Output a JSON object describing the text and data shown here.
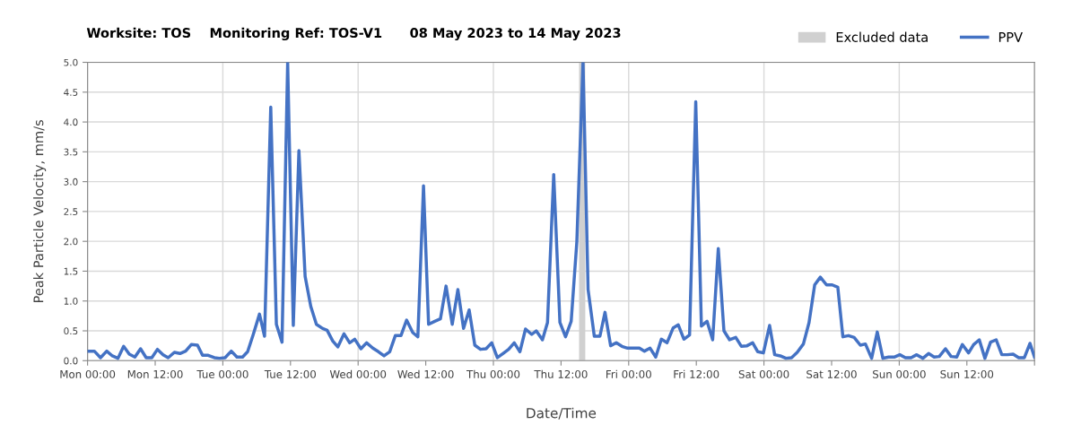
{
  "chart_data": {
    "type": "line",
    "title": "Worksite: TOS    Monitoring Ref: TOS-V1      08 May 2023 to 14 May 2023",
    "xlabel": "Date/Time",
    "ylabel": "Peak Particle Velocity, mm/s",
    "series": [
      {
        "name": "PPV",
        "color": "#4472c4",
        "x": [
          "2023-05-08T00:00",
          "2023-05-08T01:12",
          "2023-05-08T02:18",
          "2023-05-08T03:24",
          "2023-05-08T04:24",
          "2023-05-08T05:24",
          "2023-05-08T06:24",
          "2023-05-08T07:24",
          "2023-05-08T08:24",
          "2023-05-08T09:24",
          "2023-05-08T10:24",
          "2023-05-08T11:24",
          "2023-05-08T12:24",
          "2023-05-08T13:24",
          "2023-05-08T14:18",
          "2023-05-08T15:24",
          "2023-05-08T16:24",
          "2023-05-08T17:24",
          "2023-05-08T18:24",
          "2023-05-08T19:30",
          "2023-05-08T20:24",
          "2023-05-08T21:24",
          "2023-05-08T22:30",
          "2023-05-08T23:24",
          "2023-05-09T00:24",
          "2023-05-09T01:30",
          "2023-05-09T02:30",
          "2023-05-09T03:30",
          "2023-05-09T04:24",
          "2023-05-09T05:24",
          "2023-05-09T06:30",
          "2023-05-09T07:24",
          "2023-05-09T08:30",
          "2023-05-09T09:30",
          "2023-05-09T10:30",
          "2023-05-09T11:30",
          "2023-05-09T12:30",
          "2023-05-09T13:30",
          "2023-05-09T14:36",
          "2023-05-09T15:36",
          "2023-05-09T16:36",
          "2023-05-09T17:42",
          "2023-05-09T18:30",
          "2023-05-09T19:30",
          "2023-05-09T20:24",
          "2023-05-09T21:30",
          "2023-05-09T22:30",
          "2023-05-09T23:24",
          "2023-05-10T00:30",
          "2023-05-10T01:30",
          "2023-05-10T02:36",
          "2023-05-10T03:36",
          "2023-05-10T04:36",
          "2023-05-10T05:36",
          "2023-05-10T06:36",
          "2023-05-10T07:36",
          "2023-05-10T08:36",
          "2023-05-10T09:42",
          "2023-05-10T10:36",
          "2023-05-10T11:36",
          "2023-05-10T12:30",
          "2023-05-10T13:36",
          "2023-05-10T14:36",
          "2023-05-10T15:36",
          "2023-05-10T16:42",
          "2023-05-10T17:42",
          "2023-05-10T18:42",
          "2023-05-10T19:42",
          "2023-05-10T20:42",
          "2023-05-10T21:42",
          "2023-05-10T22:42",
          "2023-05-10T23:42",
          "2023-05-11T00:42",
          "2023-05-11T01:42",
          "2023-05-11T02:42",
          "2023-05-11T03:42",
          "2023-05-11T04:42",
          "2023-05-11T05:42",
          "2023-05-11T06:48",
          "2023-05-11T07:36",
          "2023-05-11T08:42",
          "2023-05-11T09:36",
          "2023-05-11T10:42",
          "2023-05-11T11:48",
          "2023-05-11T12:48",
          "2023-05-11T13:48",
          "2023-05-11T14:48",
          "2023-05-11T15:54",
          "2023-05-11T16:48",
          "2023-05-11T17:54",
          "2023-05-11T18:54",
          "2023-05-11T19:48",
          "2023-05-11T20:48",
          "2023-05-11T21:48",
          "2023-05-11T22:48",
          "2023-05-11T23:48",
          "2023-05-12T00:48",
          "2023-05-12T01:54",
          "2023-05-12T02:48",
          "2023-05-12T03:48",
          "2023-05-12T04:48",
          "2023-05-12T05:48",
          "2023-05-12T06:48",
          "2023-05-12T07:54",
          "2023-05-12T08:48",
          "2023-05-12T09:48",
          "2023-05-12T10:48",
          "2023-05-12T11:54",
          "2023-05-12T12:54",
          "2023-05-12T13:54",
          "2023-05-12T14:54",
          "2023-05-12T15:54",
          "2023-05-12T16:54",
          "2023-05-12T17:54",
          "2023-05-12T19:00",
          "2023-05-12T20:00",
          "2023-05-12T21:00",
          "2023-05-12T22:00",
          "2023-05-12T22:54",
          "2023-05-12T23:54",
          "2023-05-13T01:00",
          "2023-05-13T01:54",
          "2023-05-13T02:54",
          "2023-05-13T03:54",
          "2023-05-13T04:54",
          "2023-05-13T05:54",
          "2023-05-13T07:00",
          "2023-05-13T08:00",
          "2023-05-13T09:00",
          "2023-05-13T10:00",
          "2023-05-13T11:06",
          "2023-05-13T12:06",
          "2023-05-13T13:06",
          "2023-05-13T14:00",
          "2023-05-13T15:00",
          "2023-05-13T16:00",
          "2023-05-13T17:06",
          "2023-05-13T18:00",
          "2023-05-13T19:06",
          "2023-05-13T20:06",
          "2023-05-13T21:06",
          "2023-05-13T22:06",
          "2023-05-13T23:06",
          "2023-05-14T00:06",
          "2023-05-14T01:06",
          "2023-05-14T02:06",
          "2023-05-14T03:06",
          "2023-05-14T04:12",
          "2023-05-14T05:12",
          "2023-05-14T06:12",
          "2023-05-14T07:06",
          "2023-05-14T08:12",
          "2023-05-14T09:12",
          "2023-05-14T10:12",
          "2023-05-14T11:12",
          "2023-05-14T12:18",
          "2023-05-14T13:12",
          "2023-05-14T14:12",
          "2023-05-14T15:12",
          "2023-05-14T16:12",
          "2023-05-14T17:12",
          "2023-05-14T18:12",
          "2023-05-14T19:12",
          "2023-05-14T20:12",
          "2023-05-14T21:12",
          "2023-05-14T22:12",
          "2023-05-14T23:12",
          "2023-05-15T00:00"
        ],
        "values": [
          0.16,
          0.16,
          0.05,
          0.16,
          0.08,
          0.04,
          0.24,
          0.11,
          0.06,
          0.2,
          0.05,
          0.05,
          0.19,
          0.1,
          0.05,
          0.14,
          0.12,
          0.16,
          0.27,
          0.26,
          0.09,
          0.09,
          0.05,
          0.04,
          0.05,
          0.16,
          0.06,
          0.06,
          0.15,
          0.44,
          0.78,
          0.41,
          4.25,
          0.61,
          0.31,
          5.0,
          0.59,
          3.52,
          1.41,
          0.91,
          0.61,
          0.54,
          0.51,
          0.33,
          0.23,
          0.45,
          0.3,
          0.36,
          0.2,
          0.3,
          0.21,
          0.15,
          0.08,
          0.15,
          0.42,
          0.42,
          0.68,
          0.47,
          0.4,
          2.93,
          0.61,
          0.66,
          0.7,
          1.25,
          0.61,
          1.19,
          0.54,
          0.85,
          0.26,
          0.19,
          0.2,
          0.3,
          0.05,
          0.12,
          0.19,
          0.3,
          0.15,
          0.53,
          0.44,
          0.5,
          0.35,
          0.64,
          3.12,
          0.64,
          0.4,
          0.66,
          1.99,
          5.0,
          1.19,
          0.41,
          0.41,
          0.81,
          0.25,
          0.3,
          0.24,
          0.21,
          0.21,
          0.21,
          0.16,
          0.21,
          0.06,
          0.36,
          0.3,
          0.55,
          0.6,
          0.36,
          0.43,
          4.34,
          0.58,
          0.66,
          0.35,
          1.88,
          0.5,
          0.35,
          0.39,
          0.24,
          0.25,
          0.3,
          0.15,
          0.13,
          0.59,
          0.1,
          0.08,
          0.04,
          0.05,
          0.14,
          0.28,
          0.64,
          1.27,
          1.4,
          1.27,
          1.27,
          1.23,
          0.4,
          0.42,
          0.39,
          0.26,
          0.28,
          0.04,
          0.48,
          0.04,
          0.06,
          0.06,
          0.1,
          0.05,
          0.05,
          0.1,
          0.04,
          0.12,
          0.06,
          0.07,
          0.2,
          0.07,
          0.06,
          0.27,
          0.13,
          0.27,
          0.35,
          0.04,
          0.31,
          0.35,
          0.1,
          0.1,
          0.11,
          0.05,
          0.05,
          0.29,
          0.06
        ]
      }
    ],
    "bands": [
      {
        "axis": "x",
        "from": "2023-05-11T15:12",
        "to": "2023-05-11T16:18",
        "label": "Excluded data",
        "color": "#d0d0d0"
      }
    ],
    "xlim": [
      "2023-05-08T00:00",
      "2023-05-15T00:00"
    ],
    "xticks": [
      {
        "value": "2023-05-08T00:00",
        "label": "Mon 00:00"
      },
      {
        "value": "2023-05-08T12:00",
        "label": "Mon 12:00"
      },
      {
        "value": "2023-05-09T00:00",
        "label": "Tue 00:00"
      },
      {
        "value": "2023-05-09T12:00",
        "label": "Tue 12:00"
      },
      {
        "value": "2023-05-10T00:00",
        "label": "Wed 00:00"
      },
      {
        "value": "2023-05-10T12:00",
        "label": "Wed 12:00"
      },
      {
        "value": "2023-05-11T00:00",
        "label": "Thu 00:00"
      },
      {
        "value": "2023-05-11T12:00",
        "label": "Thu 12:00"
      },
      {
        "value": "2023-05-12T00:00",
        "label": "Fri 00:00"
      },
      {
        "value": "2023-05-12T12:00",
        "label": "Fri 12:00"
      },
      {
        "value": "2023-05-13T00:00",
        "label": "Sat 00:00"
      },
      {
        "value": "2023-05-13T12:00",
        "label": "Sat 12:00"
      },
      {
        "value": "2023-05-14T00:00",
        "label": "Sun 00:00"
      },
      {
        "value": "2023-05-14T12:00",
        "label": "Sun 12:00"
      },
      {
        "value": "2023-05-15T00:00",
        "label": null
      }
    ],
    "ylim": [
      0,
      5
    ],
    "yticks": [
      {
        "value": 0,
        "label": "0.0"
      },
      {
        "value": 0.5,
        "label": "0.5"
      },
      {
        "value": 1,
        "label": "1.0"
      },
      {
        "value": 1.5,
        "label": "1.5"
      },
      {
        "value": 2,
        "label": "2.0"
      },
      {
        "value": 2.5,
        "label": "2.5"
      },
      {
        "value": 3,
        "label": "3.0"
      },
      {
        "value": 3.5,
        "label": "3.5"
      },
      {
        "value": 4,
        "label": "4.0"
      },
      {
        "value": 4.5,
        "label": "4.5"
      },
      {
        "value": 5,
        "label": "5.0"
      }
    ],
    "grid": true,
    "legend": "top right",
    "marker": "none",
    "line_style": "solid"
  }
}
